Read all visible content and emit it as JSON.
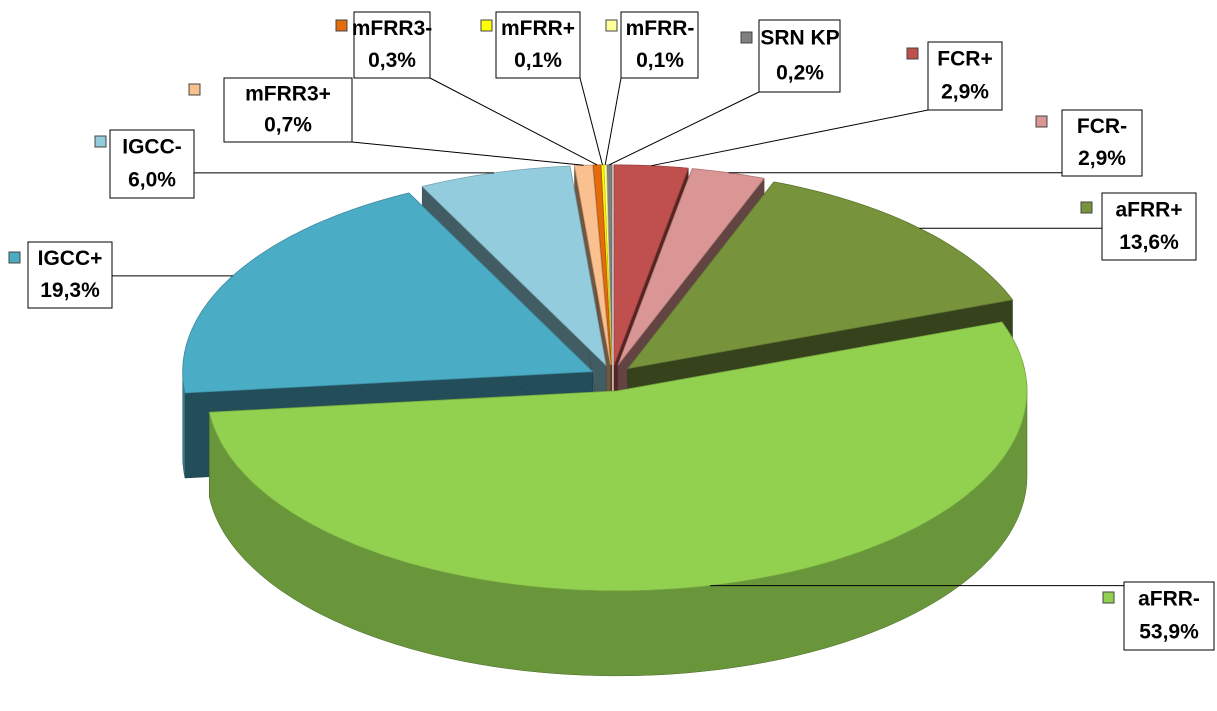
{
  "chart_data": {
    "type": "pie3d",
    "categories": [
      "FCR+",
      "FCR-",
      "aFRR+",
      "aFRR-",
      "IGCC+",
      "IGCC-",
      "mFRR3+",
      "mFRR3-",
      "mFRR+",
      "mFRR-",
      "SRN KP"
    ],
    "values": [
      2.9,
      2.9,
      13.6,
      53.9,
      19.3,
      6.0,
      0.7,
      0.3,
      0.1,
      0.1,
      0.2
    ],
    "value_labels": [
      "2,9%",
      "2,9%",
      "13,6%",
      "53,9%",
      "19,3%",
      "6,0%",
      "0,7%",
      "0,3%",
      "0,1%",
      "0,1%",
      "0,2%"
    ],
    "colors": [
      "#c0504d",
      "#d99694",
      "#77933c",
      "#92d050",
      "#4bacc6",
      "#93cddd",
      "#fac090",
      "#e46c0a",
      "#ffff00",
      "#ffff99",
      "#7f7f7f"
    ]
  }
}
